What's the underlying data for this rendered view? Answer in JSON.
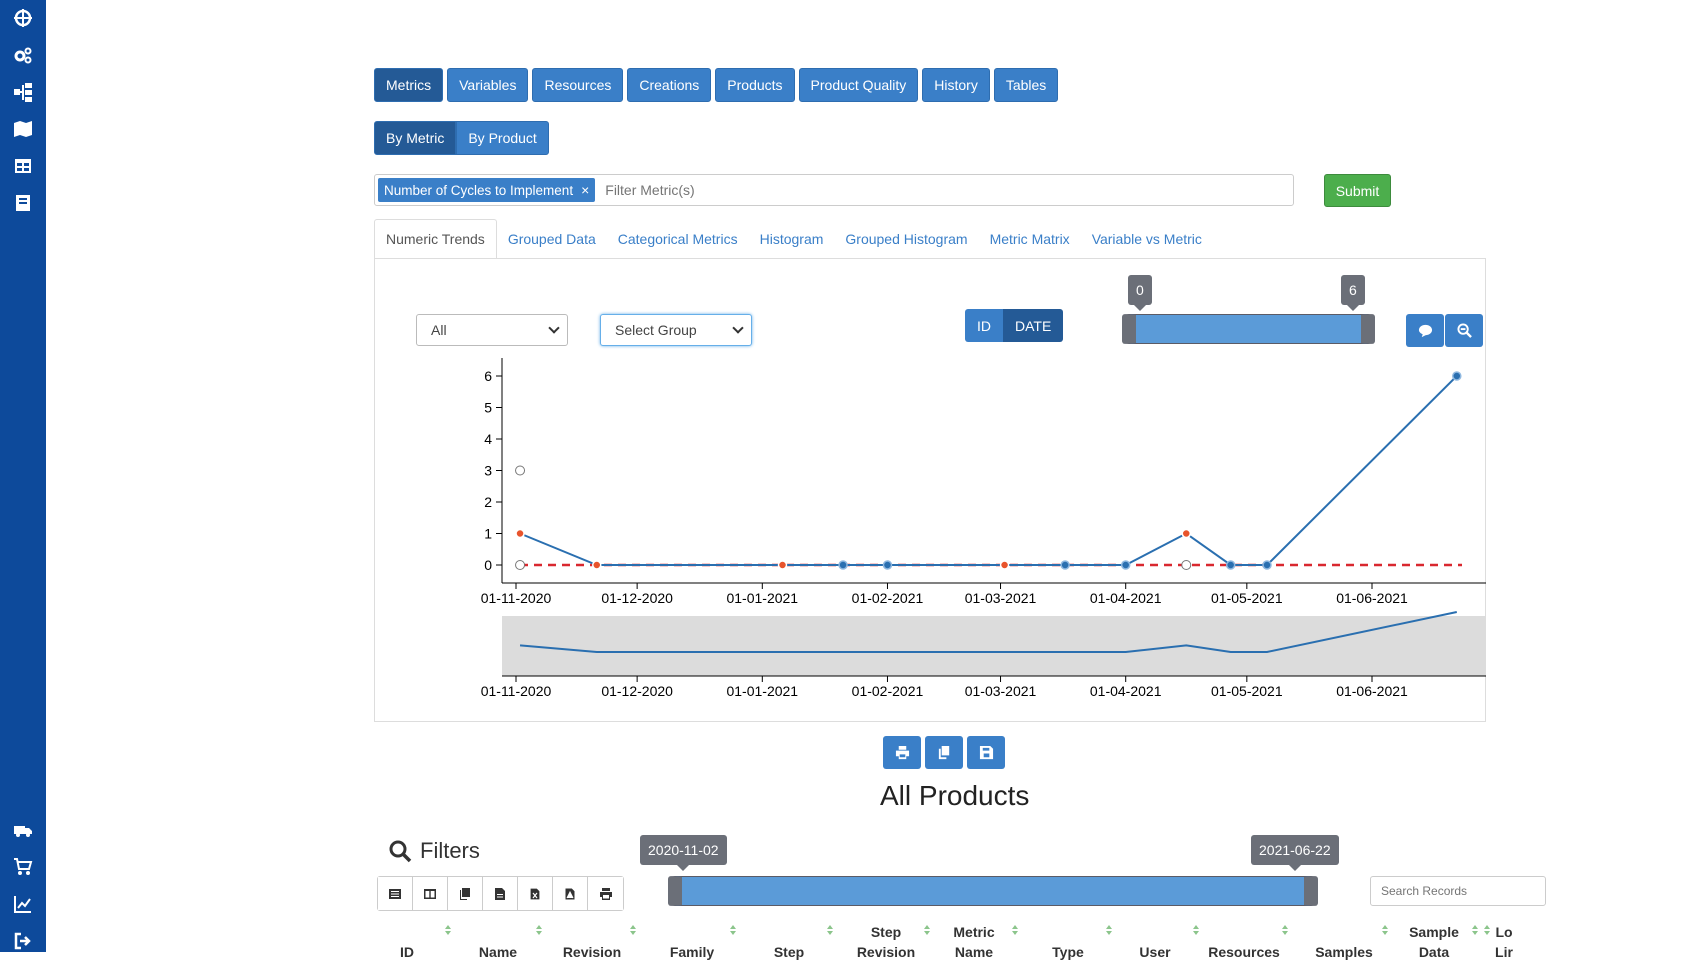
{
  "sidebar": {
    "icons": [
      "crosshair-icon",
      "cogs-icon",
      "sitemap-icon",
      "map-icon",
      "table-icon",
      "book-icon",
      "truck-icon",
      "cart-icon",
      "line-chart-icon",
      "logout-icon"
    ]
  },
  "main_tabs": [
    "Metrics",
    "Variables",
    "Resources",
    "Creations",
    "Products",
    "Product Quality",
    "History",
    "Tables"
  ],
  "sub_tabs": [
    "By Metric",
    "By Product"
  ],
  "filter": {
    "chip": "Number of Cycles to Implement",
    "placeholder": "Filter Metric(s)",
    "submit_label": "Submit"
  },
  "chart_tabs": [
    "Numeric Trends",
    "Grouped Data",
    "Categorical Metrics",
    "Histogram",
    "Grouped Histogram",
    "Metric Matrix",
    "Variable vs Metric"
  ],
  "controls": {
    "select_all": "All",
    "select_group": "Select Group",
    "toggle_id": "ID",
    "toggle_date": "DATE",
    "range_min": "0",
    "range_max": "6"
  },
  "chart_data": {
    "type": "line",
    "x_tick_labels": [
      "01-11-2020",
      "01-12-2020",
      "01-01-2021",
      "01-02-2021",
      "01-03-2021",
      "01-04-2021",
      "01-05-2021",
      "01-06-2021"
    ],
    "y_ticks": [
      0,
      1,
      2,
      3,
      4,
      5,
      6
    ],
    "ylim": [
      0,
      6
    ],
    "series": [
      {
        "color": "#2a6fb0",
        "points": [
          {
            "x": "2020-11-02",
            "y": 1
          },
          {
            "x": "2020-11-21",
            "y": 0
          },
          {
            "x": "2021-01-06",
            "y": 0
          },
          {
            "x": "2021-01-21",
            "y": 0
          },
          {
            "x": "2021-02-01",
            "y": 0
          },
          {
            "x": "2021-03-02",
            "y": 0
          },
          {
            "x": "2021-03-17",
            "y": 0
          },
          {
            "x": "2021-04-01",
            "y": 0
          },
          {
            "x": "2021-04-16",
            "y": 1
          },
          {
            "x": "2021-04-27",
            "y": 0
          },
          {
            "x": "2021-05-06",
            "y": 0
          },
          {
            "x": "2021-06-22",
            "y": 6
          }
        ]
      }
    ],
    "highlighted_points": [
      "2020-11-02",
      "2020-11-21",
      "2021-01-06",
      "2021-03-02",
      "2021-04-16"
    ],
    "open_points": [
      {
        "x": "2020-11-02",
        "y": 3
      },
      {
        "x": "2020-11-02",
        "y": 0
      },
      {
        "x": "2021-04-16",
        "y": 0
      }
    ],
    "reference_line": {
      "y": 0,
      "color": "#d9282f",
      "style": "dashed"
    }
  },
  "export_buttons": [
    "print-icon",
    "copy-icon",
    "save-icon"
  ],
  "products": {
    "title": "All Products",
    "filters_label": "Filters",
    "date_min": "2020-11-02",
    "date_max": "2021-06-22",
    "search_placeholder": "Search Records",
    "tools": [
      "list-icon",
      "columns-icon",
      "copy-icon",
      "csv-icon",
      "excel-icon",
      "pdf-icon",
      "print-icon"
    ],
    "columns": [
      {
        "line1": "",
        "line2": "ID"
      },
      {
        "line1": "",
        "line2": "Name"
      },
      {
        "line1": "",
        "line2": "Revision"
      },
      {
        "line1": "",
        "line2": "Family"
      },
      {
        "line1": "",
        "line2": "Step"
      },
      {
        "line1": "Step",
        "line2": "Revision"
      },
      {
        "line1": "Metric",
        "line2": "Name"
      },
      {
        "line1": "",
        "line2": "Type"
      },
      {
        "line1": "",
        "line2": "User"
      },
      {
        "line1": "",
        "line2": "Resources"
      },
      {
        "line1": "",
        "line2": "Samples"
      },
      {
        "line1": "Sample",
        "line2": "Data"
      },
      {
        "line1": "Lo",
        "line2": "Lir"
      }
    ]
  }
}
